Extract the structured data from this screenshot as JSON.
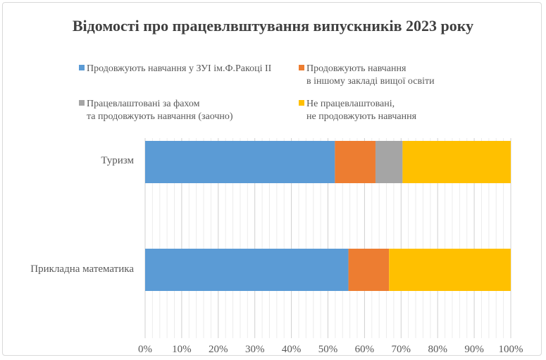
{
  "chart_data": {
    "type": "bar",
    "orientation": "horizontal",
    "stacked": "100%",
    "title": "Відомості про працевлвштування випускників 2023 року",
    "categories": [
      "Туризм",
      "Прикладна математика"
    ],
    "series": [
      {
        "name": "Продовжують навчання у ЗУІ ім.Ф.Ракоці ІІ",
        "name_lines": [
          "Продовжують навчання у ЗУІ ім.Ф.Ракоці ІІ"
        ],
        "color": "#5b9bd5",
        "values": [
          51.9,
          55.6
        ]
      },
      {
        "name": "Продовжують навчання в іншому закладі вищої освіти",
        "name_lines": [
          "Продовжують навчання",
          "в іншому закладі вищої освіти"
        ],
        "color": "#ed7d31",
        "values": [
          11.1,
          11.1
        ]
      },
      {
        "name": "Працевлаштовані за фахом та продовжують навчання (заочно)",
        "name_lines": [
          "Працевлаштовані за фахом",
          "та продовжують навчання (заочно)"
        ],
        "color": "#a5a5a5",
        "values": [
          7.4,
          0
        ]
      },
      {
        "name": "Не працевлаштовані, не продовжують навчання",
        "name_lines": [
          "Не працевлаштовані,",
          "не продовжують навчання"
        ],
        "color": "#ffc000",
        "values": [
          29.6,
          33.3
        ]
      }
    ],
    "xlim": [
      0,
      100
    ],
    "xticks": [
      "0%",
      "10%",
      "20%",
      "30%",
      "40%",
      "50%",
      "60%",
      "70%",
      "80%",
      "90%",
      "100%"
    ],
    "grid": true,
    "legend_position": "top",
    "xlabel": "",
    "ylabel": ""
  }
}
